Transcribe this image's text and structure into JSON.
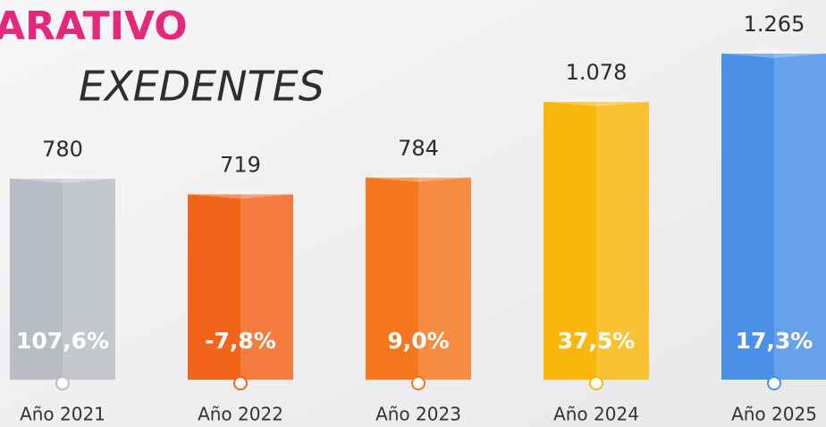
{
  "chart_data": {
    "type": "bar",
    "title": "ARATIVO",
    "subtitle": "EXEDENTES",
    "categories": [
      "Año 2021",
      "Año 2022",
      "Año 2023",
      "Año 2024",
      "Año 2025"
    ],
    "values": [
      780,
      719,
      784,
      1078,
      1265
    ],
    "value_labels": [
      "780",
      "719",
      "784",
      "1.078",
      "1.265"
    ],
    "annotations": [
      "107,6%",
      "-7,8%",
      "9,0%",
      "37,5%",
      "17,3%"
    ],
    "colors": [
      "#b9bdc3",
      "#f2641a",
      "#f4761d",
      "#f8b70c",
      "#4a8fe8"
    ]
  }
}
